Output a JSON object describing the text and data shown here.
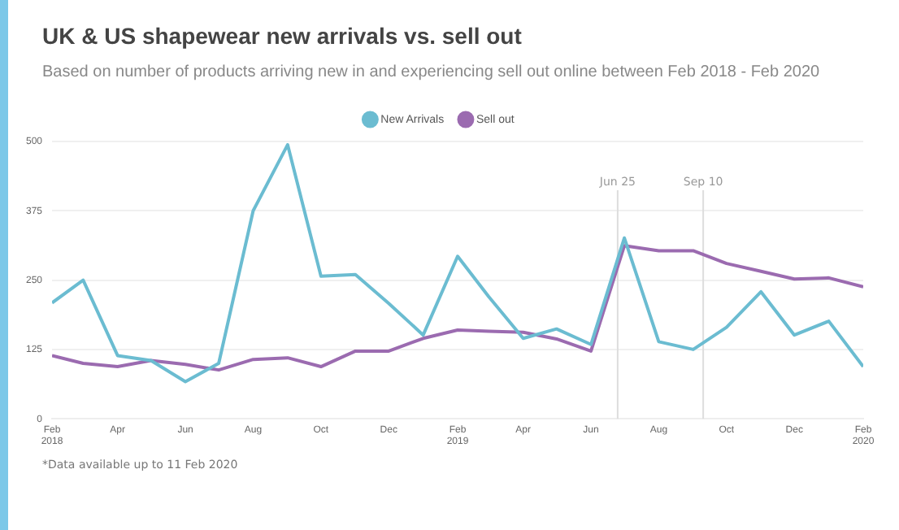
{
  "chart_data": {
    "type": "line",
    "title": "UK & US shapewear new arrivals vs. sell out",
    "subtitle": "Based on number of products arriving new in and experiencing sell out online between Feb 2018 - Feb 2020",
    "x": [
      "2018-02",
      "2018-03",
      "2018-04",
      "2018-05",
      "2018-06",
      "2018-07",
      "2018-08",
      "2018-09",
      "2018-10",
      "2018-11",
      "2018-12",
      "2019-01",
      "2019-02",
      "2019-03",
      "2019-04",
      "2019-05",
      "2019-06",
      "2019-07",
      "2019-08",
      "2019-09",
      "2019-10",
      "2019-11",
      "2019-12",
      "2020-01",
      "2020-02"
    ],
    "series": [
      {
        "name": "New Arrivals",
        "color": "#6bbcd1",
        "values": [
          209,
          250,
          114,
          105,
          67,
          100,
          375,
          494,
          257,
          260,
          208,
          151,
          293,
          220,
          145,
          162,
          134,
          326,
          139,
          125,
          165,
          229,
          151,
          176,
          94
        ]
      },
      {
        "name": "Sell out",
        "color": "#9b6bb0",
        "values": [
          114,
          100,
          94,
          105,
          98,
          88,
          107,
          110,
          94,
          122,
          122,
          145,
          160,
          158,
          156,
          144,
          122,
          312,
          303,
          303,
          280,
          266,
          252,
          254,
          238
        ]
      }
    ],
    "xlim": [
      "2018-02",
      "2020-02"
    ],
    "xticks": [
      {
        "value": "2018-02",
        "label": "Feb\n2018"
      },
      {
        "value": "2018-04",
        "label": "Apr"
      },
      {
        "value": "2018-06",
        "label": "Jun"
      },
      {
        "value": "2018-08",
        "label": "Aug"
      },
      {
        "value": "2018-10",
        "label": "Oct"
      },
      {
        "value": "2018-12",
        "label": "Dec"
      },
      {
        "value": "2019-02",
        "label": "Feb\n2019"
      },
      {
        "value": "2019-04",
        "label": "Apr"
      },
      {
        "value": "2019-06",
        "label": "Jun"
      },
      {
        "value": "2019-08",
        "label": "Aug"
      },
      {
        "value": "2019-10",
        "label": "Oct"
      },
      {
        "value": "2019-12",
        "label": "Dec"
      },
      {
        "value": "2020-02",
        "label": "Feb\n2020"
      }
    ],
    "ylim": [
      0,
      500
    ],
    "yticks": [
      0,
      125,
      250,
      375,
      500
    ],
    "ref_lines": [
      {
        "axis": "x",
        "value": "2019-06-25",
        "label": "Jun 25",
        "color": "#dddddd"
      },
      {
        "axis": "x",
        "value": "2019-09-10",
        "label": "Sep 10",
        "color": "#dddddd"
      }
    ],
    "annotations": [
      "*Data available up to 11 Feb 2020"
    ],
    "grid": "y",
    "legend": "top",
    "marker": "none",
    "line_style": "solid"
  }
}
